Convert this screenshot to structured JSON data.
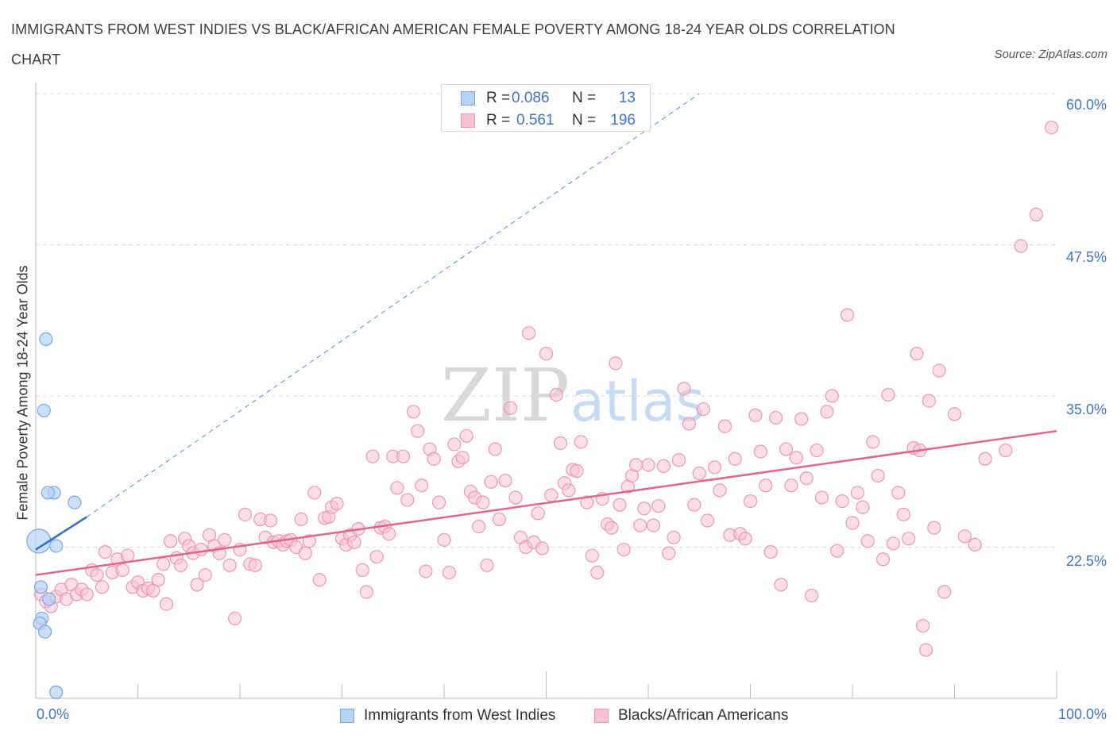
{
  "title": "IMMIGRANTS FROM WEST INDIES VS BLACK/AFRICAN AMERICAN FEMALE POVERTY AMONG 18-24 YEAR OLDS CORRELATION CHART",
  "source": "Source: ZipAtlas.com",
  "watermark": {
    "zip": "ZIP",
    "atlas": "atlas"
  },
  "legend_top": {
    "rows": [
      {
        "r_label": "R =",
        "r_value": "0.086",
        "n_label": "N =",
        "n_value": "13"
      },
      {
        "r_label": "R =",
        "r_value": "0.561",
        "n_label": "N =",
        "n_value": "196"
      }
    ]
  },
  "colors": {
    "blue_fill": "#b7d2f5",
    "blue_stroke": "#7aa6e0",
    "blue_line": "#2f6fcf",
    "pink_fill": "#f7c3d4",
    "pink_stroke": "#eb96b4",
    "pink_line": "#e0648d",
    "tick_text": "#3f74c8",
    "grid": "#dddddd"
  },
  "chart_data": {
    "type": "scatter",
    "title": "IMMIGRANTS FROM WEST INDIES VS BLACK/AFRICAN AMERICAN FEMALE POVERTY AMONG 18-24 YEAR OLDS CORRELATION CHART",
    "xlabel": "",
    "ylabel": "Female Poverty Among 18-24 Year Olds",
    "xlim": [
      0,
      100
    ],
    "ylim": [
      10,
      60
    ],
    "x_tick_labels": [
      "0.0%",
      "100.0%"
    ],
    "y_tick_values": [
      22.5,
      35.0,
      47.5,
      60.0
    ],
    "y_tick_labels": [
      "22.5%",
      "35.0%",
      "47.5%",
      "60.0%"
    ],
    "grid": true,
    "legend_position": "bottom",
    "series": [
      {
        "name": "Immigrants from West Indies",
        "color": "#b7d2f5",
        "r": 0.086,
        "n": 13,
        "trend": {
          "x": [
            0,
            5
          ],
          "y": [
            22.3,
            25.0
          ],
          "extended_to": [
            65,
            60
          ]
        },
        "points": [
          [
            0.3,
            23.0
          ],
          [
            1.0,
            39.7
          ],
          [
            0.8,
            33.8
          ],
          [
            1.8,
            27.0
          ],
          [
            3.8,
            26.2
          ],
          [
            2.0,
            22.6
          ],
          [
            1.2,
            27.0
          ],
          [
            0.5,
            19.2
          ],
          [
            1.3,
            18.2
          ],
          [
            0.6,
            16.6
          ],
          [
            0.4,
            16.2
          ],
          [
            0.9,
            15.5
          ],
          [
            2.0,
            10.5
          ]
        ]
      },
      {
        "name": "Blacks/African Americans",
        "color": "#f7c3d4",
        "r": 0.561,
        "n": 196,
        "trend": {
          "x": [
            0,
            100
          ],
          "y": [
            20.2,
            32.1
          ]
        },
        "points": [
          [
            0.5,
            18.6
          ],
          [
            1.0,
            18.0
          ],
          [
            1.5,
            17.6
          ],
          [
            2.0,
            18.4
          ],
          [
            2.5,
            19.0
          ],
          [
            3.0,
            18.2
          ],
          [
            3.5,
            19.4
          ],
          [
            4.0,
            18.6
          ],
          [
            4.5,
            19.0
          ],
          [
            5.0,
            18.6
          ],
          [
            5.5,
            20.6
          ],
          [
            6.0,
            20.2
          ],
          [
            6.5,
            19.2
          ],
          [
            6.8,
            22.1
          ],
          [
            7.5,
            20.4
          ],
          [
            8.0,
            21.5
          ],
          [
            8.5,
            20.6
          ],
          [
            9.0,
            21.8
          ],
          [
            9.5,
            19.2
          ],
          [
            10.0,
            19.6
          ],
          [
            10.5,
            18.9
          ],
          [
            11.0,
            19.1
          ],
          [
            11.5,
            18.9
          ],
          [
            12.0,
            19.8
          ],
          [
            12.5,
            21.1
          ],
          [
            12.8,
            17.8
          ],
          [
            13.2,
            23.0
          ],
          [
            13.8,
            21.6
          ],
          [
            14.2,
            21.0
          ],
          [
            14.6,
            23.2
          ],
          [
            15.0,
            22.6
          ],
          [
            15.4,
            22.0
          ],
          [
            15.8,
            19.4
          ],
          [
            16.2,
            22.3
          ],
          [
            16.6,
            20.2
          ],
          [
            17.0,
            23.5
          ],
          [
            17.5,
            22.6
          ],
          [
            18.0,
            22.0
          ],
          [
            18.5,
            23.1
          ],
          [
            19.0,
            21.0
          ],
          [
            19.5,
            16.6
          ],
          [
            20.0,
            22.3
          ],
          [
            20.5,
            25.2
          ],
          [
            21.0,
            21.1
          ],
          [
            21.5,
            21.0
          ],
          [
            22.0,
            24.8
          ],
          [
            22.5,
            23.3
          ],
          [
            23.0,
            24.7
          ],
          [
            23.3,
            22.9
          ],
          [
            23.8,
            23.0
          ],
          [
            24.2,
            22.7
          ],
          [
            24.6,
            23.0
          ],
          [
            25.0,
            23.1
          ],
          [
            25.5,
            22.5
          ],
          [
            26.0,
            24.8
          ],
          [
            26.4,
            22.0
          ],
          [
            26.8,
            23.0
          ],
          [
            27.3,
            27.0
          ],
          [
            27.8,
            19.8
          ],
          [
            28.3,
            24.9
          ],
          [
            28.7,
            25.0
          ],
          [
            29.0,
            25.8
          ],
          [
            29.5,
            26.1
          ],
          [
            30.0,
            23.2
          ],
          [
            30.4,
            22.7
          ],
          [
            30.8,
            23.5
          ],
          [
            31.2,
            22.9
          ],
          [
            31.6,
            24.0
          ],
          [
            32.0,
            20.6
          ],
          [
            32.4,
            18.8
          ],
          [
            33.0,
            30.0
          ],
          [
            33.4,
            21.7
          ],
          [
            33.8,
            24.1
          ],
          [
            34.2,
            24.2
          ],
          [
            34.6,
            23.6
          ],
          [
            35.0,
            30.0
          ],
          [
            35.4,
            27.4
          ],
          [
            36.0,
            30.0
          ],
          [
            36.4,
            26.4
          ],
          [
            37.0,
            33.7
          ],
          [
            37.4,
            32.1
          ],
          [
            37.8,
            27.6
          ],
          [
            38.2,
            20.5
          ],
          [
            38.6,
            30.6
          ],
          [
            39.0,
            29.8
          ],
          [
            39.5,
            26.2
          ],
          [
            40.0,
            23.1
          ],
          [
            40.5,
            20.4
          ],
          [
            41.0,
            31.0
          ],
          [
            41.4,
            29.6
          ],
          [
            41.8,
            29.9
          ],
          [
            42.2,
            31.7
          ],
          [
            42.6,
            27.1
          ],
          [
            43.0,
            26.6
          ],
          [
            43.4,
            24.2
          ],
          [
            43.8,
            26.2
          ],
          [
            44.2,
            21.0
          ],
          [
            44.6,
            27.9
          ],
          [
            45.0,
            30.6
          ],
          [
            45.4,
            24.8
          ],
          [
            46.0,
            28.0
          ],
          [
            46.5,
            34.0
          ],
          [
            47.0,
            26.6
          ],
          [
            47.5,
            23.3
          ],
          [
            48.0,
            22.5
          ],
          [
            48.3,
            40.2
          ],
          [
            48.8,
            22.9
          ],
          [
            49.2,
            25.3
          ],
          [
            49.6,
            22.4
          ],
          [
            50.0,
            38.5
          ],
          [
            50.5,
            26.8
          ],
          [
            51.0,
            35.1
          ],
          [
            51.4,
            31.1
          ],
          [
            51.8,
            27.8
          ],
          [
            52.2,
            27.2
          ],
          [
            52.6,
            28.9
          ],
          [
            53.0,
            28.8
          ],
          [
            53.4,
            31.2
          ],
          [
            54.0,
            26.2
          ],
          [
            54.5,
            21.8
          ],
          [
            55.0,
            20.4
          ],
          [
            55.5,
            26.5
          ],
          [
            56.0,
            24.4
          ],
          [
            56.4,
            24.1
          ],
          [
            56.8,
            37.7
          ],
          [
            57.2,
            26.0
          ],
          [
            57.6,
            22.3
          ],
          [
            58.0,
            27.5
          ],
          [
            58.4,
            28.4
          ],
          [
            58.8,
            29.3
          ],
          [
            59.2,
            24.3
          ],
          [
            59.6,
            25.7
          ],
          [
            60.0,
            29.3
          ],
          [
            60.5,
            24.3
          ],
          [
            61.0,
            25.9
          ],
          [
            61.5,
            29.2
          ],
          [
            62.0,
            22.0
          ],
          [
            62.5,
            23.3
          ],
          [
            63.0,
            29.7
          ],
          [
            63.5,
            35.6
          ],
          [
            64.0,
            32.7
          ],
          [
            64.5,
            26.0
          ],
          [
            65.0,
            28.6
          ],
          [
            65.4,
            33.9
          ],
          [
            65.8,
            24.7
          ],
          [
            66.5,
            29.1
          ],
          [
            67.0,
            27.2
          ],
          [
            67.5,
            32.5
          ],
          [
            68.0,
            23.5
          ],
          [
            68.5,
            29.8
          ],
          [
            69.0,
            23.6
          ],
          [
            69.5,
            23.2
          ],
          [
            70.0,
            26.3
          ],
          [
            70.5,
            33.4
          ],
          [
            71.0,
            30.4
          ],
          [
            71.5,
            27.6
          ],
          [
            72.0,
            22.1
          ],
          [
            72.5,
            33.2
          ],
          [
            73.0,
            19.4
          ],
          [
            73.5,
            30.6
          ],
          [
            74.0,
            27.6
          ],
          [
            74.5,
            29.9
          ],
          [
            75.0,
            33.1
          ],
          [
            75.5,
            28.2
          ],
          [
            76.0,
            18.5
          ],
          [
            76.5,
            30.5
          ],
          [
            77.0,
            26.6
          ],
          [
            77.5,
            33.7
          ],
          [
            78.0,
            35.0
          ],
          [
            78.5,
            22.2
          ],
          [
            79.0,
            26.3
          ],
          [
            79.5,
            41.7
          ],
          [
            80.0,
            24.5
          ],
          [
            80.5,
            27.0
          ],
          [
            81.0,
            25.8
          ],
          [
            81.5,
            23.0
          ],
          [
            82.0,
            31.2
          ],
          [
            82.5,
            28.4
          ],
          [
            83.0,
            21.5
          ],
          [
            83.5,
            35.1
          ],
          [
            84.0,
            22.8
          ],
          [
            84.5,
            27.0
          ],
          [
            85.0,
            25.2
          ],
          [
            85.5,
            23.2
          ],
          [
            86.0,
            30.7
          ],
          [
            86.3,
            38.5
          ],
          [
            86.6,
            30.5
          ],
          [
            86.9,
            16.0
          ],
          [
            87.2,
            14.0
          ],
          [
            87.5,
            34.6
          ],
          [
            88.0,
            24.1
          ],
          [
            88.5,
            37.1
          ],
          [
            89.0,
            18.8
          ],
          [
            90.0,
            33.5
          ],
          [
            91.0,
            23.4
          ],
          [
            92.0,
            22.7
          ],
          [
            93.0,
            29.8
          ],
          [
            95.0,
            30.5
          ],
          [
            96.5,
            47.4
          ],
          [
            98.0,
            50.0
          ],
          [
            99.5,
            57.2
          ]
        ]
      }
    ]
  }
}
